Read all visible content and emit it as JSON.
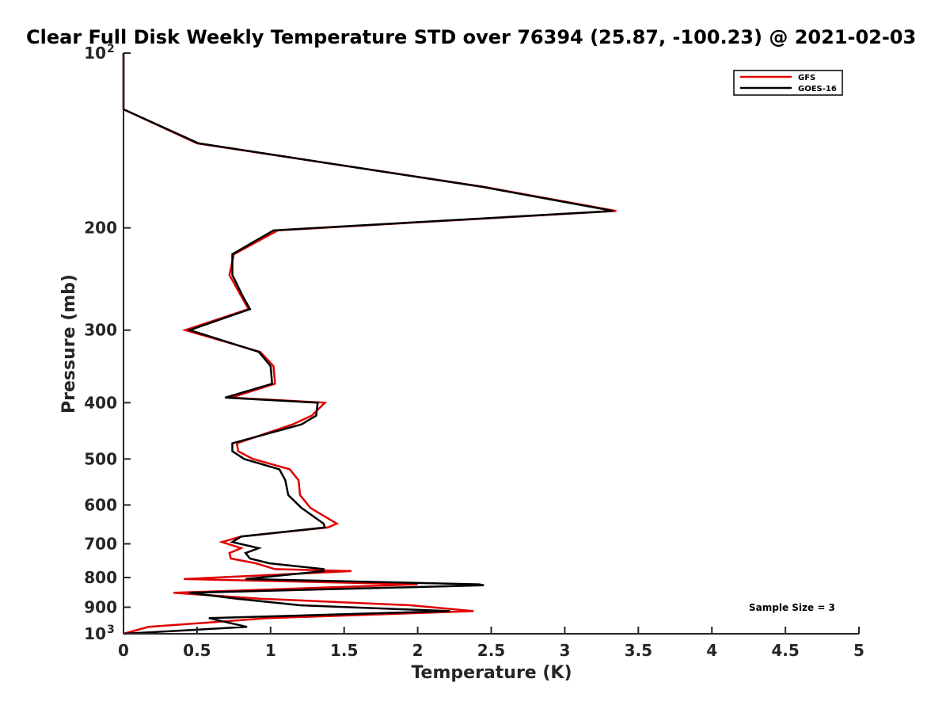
{
  "chart_data": {
    "type": "line",
    "title": "Clear Full Disk Weekly Temperature STD over 76394 (25.87, -100.23) @ 2021-02-03",
    "xlabel": "Temperature (K)",
    "ylabel": "Pressure (mb)",
    "xlim": [
      0,
      5
    ],
    "ylim": [
      100,
      1000
    ],
    "y_scale": "log",
    "y_reversed": true,
    "grid": false,
    "legend_position": "top-right",
    "x_ticks": [
      "0",
      "0.5",
      "1",
      "1.5",
      "2",
      "2.5",
      "3",
      "3.5",
      "4",
      "4.5",
      "5"
    ],
    "y_ticks": [
      {
        "value": 100,
        "label": "10",
        "sup": "2"
      },
      {
        "value": 200,
        "label": "200",
        "sup": ""
      },
      {
        "value": 300,
        "label": "300",
        "sup": ""
      },
      {
        "value": 400,
        "label": "400",
        "sup": ""
      },
      {
        "value": 500,
        "label": "500",
        "sup": ""
      },
      {
        "value": 600,
        "label": "600",
        "sup": ""
      },
      {
        "value": 700,
        "label": "700",
        "sup": ""
      },
      {
        "value": 800,
        "label": "800",
        "sup": ""
      },
      {
        "value": 900,
        "label": "900",
        "sup": ""
      },
      {
        "value": 1000,
        "label": "10",
        "sup": "3"
      }
    ],
    "series": [
      {
        "name": "GFS",
        "color": "#e00000",
        "points": [
          [
            0,
            100
          ],
          [
            0,
            125
          ],
          [
            0.5,
            143
          ],
          [
            2.45,
            170
          ],
          [
            3.35,
            187
          ],
          [
            1.05,
            202
          ],
          [
            0.75,
            222
          ],
          [
            0.72,
            241
          ],
          [
            0.8,
            262
          ],
          [
            0.85,
            276
          ],
          [
            0.42,
            300
          ],
          [
            0.93,
            327
          ],
          [
            1.02,
            346
          ],
          [
            1.03,
            371
          ],
          [
            0.73,
            392
          ],
          [
            1.37,
            400
          ],
          [
            1.28,
            421
          ],
          [
            1.15,
            436
          ],
          [
            0.77,
            470
          ],
          [
            0.78,
            485
          ],
          [
            0.88,
            500
          ],
          [
            1.13,
            521
          ],
          [
            1.19,
            544
          ],
          [
            1.2,
            577
          ],
          [
            1.27,
            607
          ],
          [
            1.45,
            646
          ],
          [
            1.39,
            656
          ],
          [
            0.8,
            680
          ],
          [
            0.67,
            695
          ],
          [
            0.8,
            712
          ],
          [
            0.72,
            726
          ],
          [
            0.73,
            742
          ],
          [
            0.9,
            756
          ],
          [
            1.03,
            774
          ],
          [
            1.55,
            780
          ],
          [
            0.41,
            805
          ],
          [
            2.0,
            822
          ],
          [
            0.34,
            850
          ],
          [
            0.93,
            870
          ],
          [
            1.95,
            893
          ],
          [
            2.38,
            914
          ],
          [
            0.98,
            940
          ],
          [
            0.17,
            973
          ],
          [
            0,
            1000
          ]
        ]
      },
      {
        "name": "GOES-16",
        "color": "#000000",
        "points": [
          [
            0,
            100
          ],
          [
            0,
            125
          ],
          [
            0.51,
            143
          ],
          [
            2.44,
            170
          ],
          [
            3.33,
            187
          ],
          [
            1.02,
            202
          ],
          [
            0.74,
            222
          ],
          [
            0.74,
            241
          ],
          [
            0.81,
            262
          ],
          [
            0.86,
            276
          ],
          [
            0.45,
            300
          ],
          [
            0.92,
            327
          ],
          [
            1.0,
            346
          ],
          [
            1.01,
            371
          ],
          [
            0.69,
            392
          ],
          [
            1.32,
            400
          ],
          [
            1.31,
            421
          ],
          [
            1.21,
            436
          ],
          [
            0.74,
            470
          ],
          [
            0.74,
            485
          ],
          [
            0.82,
            500
          ],
          [
            1.06,
            521
          ],
          [
            1.1,
            544
          ],
          [
            1.12,
            577
          ],
          [
            1.21,
            607
          ],
          [
            1.36,
            646
          ],
          [
            1.37,
            656
          ],
          [
            0.8,
            680
          ],
          [
            0.74,
            695
          ],
          [
            0.92,
            712
          ],
          [
            0.83,
            726
          ],
          [
            0.86,
            742
          ],
          [
            0.99,
            756
          ],
          [
            1.36,
            774
          ],
          [
            1.36,
            780
          ],
          [
            0.83,
            805
          ],
          [
            2.42,
            822
          ],
          [
            2.45,
            825
          ],
          [
            0.45,
            850
          ],
          [
            0.77,
            870
          ],
          [
            1.2,
            893
          ],
          [
            2.22,
            914
          ],
          [
            0.58,
            940
          ],
          [
            0.84,
            973
          ],
          [
            0,
            1000
          ]
        ]
      }
    ],
    "annotation": "Sample Size = 3"
  }
}
